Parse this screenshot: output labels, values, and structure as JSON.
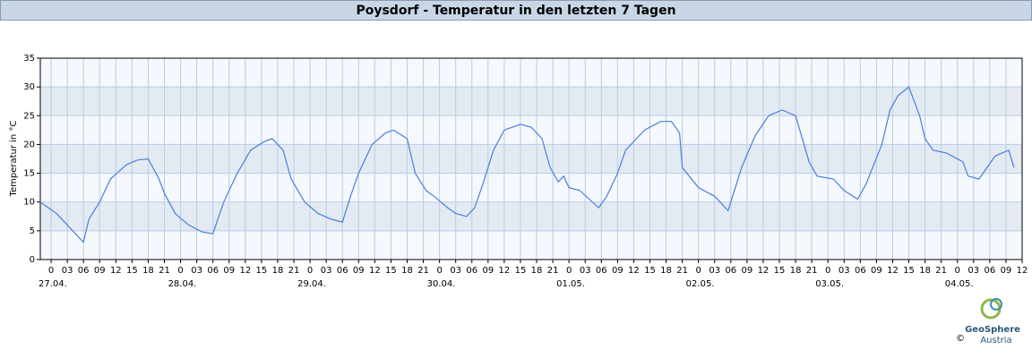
{
  "chart_data": {
    "type": "line",
    "title": "Poysdorf - Temperatur in den letzten 7 Tagen",
    "y_label": "Temperatur in °C",
    "color": "#4a7fdc",
    "grid": true,
    "xlim": [
      -2,
      180
    ],
    "ylim": [
      0,
      35
    ],
    "yticks": [
      0,
      5,
      10,
      15,
      20,
      25,
      30,
      35
    ],
    "xticks": [
      0,
      {
        "value": 3,
        "label": "03"
      },
      {
        "value": 6,
        "label": "06"
      },
      {
        "value": 9,
        "label": "09"
      },
      12,
      15,
      18,
      21,
      {
        "value": 24,
        "label": "0"
      },
      {
        "value": 27,
        "label": "03"
      },
      {
        "value": 30,
        "label": "06"
      },
      {
        "value": 33,
        "label": "09"
      },
      {
        "value": 36,
        "label": "12"
      },
      {
        "value": 39,
        "label": "15"
      },
      {
        "value": 42,
        "label": "18"
      },
      {
        "value": 45,
        "label": "21"
      },
      {
        "value": 48,
        "label": "0"
      },
      {
        "value": 51,
        "label": "03"
      },
      {
        "value": 54,
        "label": "06"
      },
      {
        "value": 57,
        "label": "09"
      },
      {
        "value": 60,
        "label": "12"
      },
      {
        "value": 63,
        "label": "15"
      },
      {
        "value": 66,
        "label": "18"
      },
      {
        "value": 69,
        "label": "21"
      },
      {
        "value": 72,
        "label": "0"
      },
      {
        "value": 75,
        "label": "03"
      },
      {
        "value": 78,
        "label": "06"
      },
      {
        "value": 81,
        "label": "09"
      },
      {
        "value": 84,
        "label": "12"
      },
      {
        "value": 87,
        "label": "15"
      },
      {
        "value": 90,
        "label": "18"
      },
      {
        "value": 93,
        "label": "21"
      },
      {
        "value": 96,
        "label": "0"
      },
      {
        "value": 99,
        "label": "03"
      },
      {
        "value": 102,
        "label": "06"
      },
      {
        "value": 105,
        "label": "09"
      },
      {
        "value": 108,
        "label": "12"
      },
      {
        "value": 111,
        "label": "15"
      },
      {
        "value": 114,
        "label": "18"
      },
      {
        "value": 117,
        "label": "21"
      },
      {
        "value": 120,
        "label": "0"
      },
      {
        "value": 123,
        "label": "03"
      },
      {
        "value": 126,
        "label": "06"
      },
      {
        "value": 129,
        "label": "09"
      },
      {
        "value": 132,
        "label": "12"
      },
      {
        "value": 135,
        "label": "15"
      },
      {
        "value": 138,
        "label": "18"
      },
      {
        "value": 141,
        "label": "21"
      },
      {
        "value": 144,
        "label": "0"
      },
      {
        "value": 147,
        "label": "03"
      },
      {
        "value": 150,
        "label": "06"
      },
      {
        "value": 153,
        "label": "09"
      },
      {
        "value": 156,
        "label": "12"
      },
      {
        "value": 159,
        "label": "15"
      },
      {
        "value": 162,
        "label": "18"
      },
      {
        "value": 165,
        "label": "21"
      },
      {
        "value": 168,
        "label": "0"
      },
      {
        "value": 171,
        "label": "03"
      },
      {
        "value": 174,
        "label": "06"
      },
      {
        "value": 177,
        "label": "09"
      },
      {
        "value": 180,
        "label": "12"
      }
    ],
    "day_labels": [
      {
        "value": 0,
        "label": "27.04."
      },
      {
        "value": 24,
        "label": "28.04."
      },
      {
        "value": 48,
        "label": "29.04."
      },
      {
        "value": 72,
        "label": "30.04."
      },
      {
        "value": 96,
        "label": "01.05."
      },
      {
        "value": 120,
        "label": "02.05."
      },
      {
        "value": 144,
        "label": "03.05."
      },
      {
        "value": 168,
        "label": "04.05."
      }
    ],
    "x": [
      -2,
      1,
      3,
      5,
      6,
      7,
      9,
      11,
      14,
      16,
      18,
      20,
      21,
      23,
      25.5,
      28,
      30,
      32,
      34.5,
      37,
      39.5,
      41,
      43,
      44.5,
      47,
      49.5,
      52,
      54,
      55.5,
      57,
      59.5,
      62,
      63.5,
      66,
      67.5,
      69.5,
      71,
      73.5,
      75,
      77,
      78.5,
      80,
      82,
      84,
      87,
      89,
      91,
      92.5,
      94,
      95,
      96,
      98,
      101.5,
      103,
      105,
      106.5,
      110,
      113,
      115,
      116.5,
      117,
      120,
      123,
      125.5,
      128,
      130.5,
      133,
      135.5,
      138,
      140.5,
      142,
      145,
      147,
      149.5,
      151,
      154,
      155.5,
      157,
      159,
      161,
      162,
      163.5,
      166,
      169,
      170,
      172,
      173.5,
      175,
      177.5,
      178.5
    ],
    "values": [
      10,
      8,
      6,
      4,
      3,
      7,
      10,
      14,
      16.5,
      17.3,
      17.5,
      14,
      11.5,
      8,
      6,
      4.8,
      4.5,
      10,
      15,
      19,
      20.5,
      21,
      19,
      14,
      10,
      8,
      7,
      6.5,
      11,
      15,
      20,
      22,
      22.5,
      21,
      15,
      12,
      11,
      9,
      8,
      7.5,
      9,
      13,
      19,
      22.5,
      23.5,
      23,
      21,
      16,
      13.5,
      14.5,
      12.5,
      12,
      9,
      11,
      15,
      19,
      22.5,
      24,
      24,
      22,
      16,
      12.5,
      11,
      8.5,
      16,
      21.5,
      25,
      26,
      25,
      17,
      14.5,
      14,
      12,
      10.5,
      13,
      20,
      26,
      28.5,
      30,
      25,
      21,
      19,
      18.5,
      17,
      14.5,
      14,
      16,
      18,
      19,
      16
    ]
  },
  "logo": {
    "name": "GeoSphere",
    "sub": "Austria",
    "copyright": "©"
  }
}
